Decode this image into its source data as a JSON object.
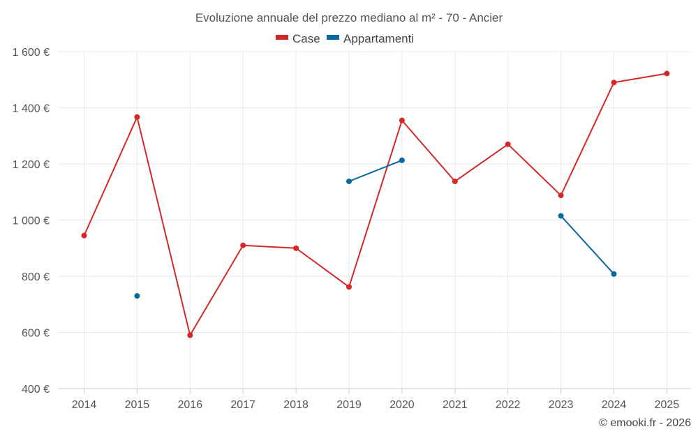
{
  "chart_data": {
    "type": "line",
    "title": "Evoluzione annuale del prezzo mediano al m² - 70 - Ancier",
    "xlabel": "",
    "ylabel": "",
    "categories": [
      "2014",
      "2015",
      "2016",
      "2017",
      "2018",
      "2019",
      "2020",
      "2021",
      "2022",
      "2023",
      "2024",
      "2025"
    ],
    "ylim": [
      400,
      1600
    ],
    "yticks": [
      400,
      600,
      800,
      1000,
      1200,
      1400,
      1600
    ],
    "ytick_labels": [
      "400 €",
      "600 €",
      "800 €",
      "1 000 €",
      "1 200 €",
      "1 400 €",
      "1 600 €"
    ],
    "grid": true,
    "legend_position": "top-center",
    "series": [
      {
        "name": "Case",
        "color": "#d62728",
        "values": [
          945,
          1367,
          590,
          910,
          900,
          762,
          1355,
          1138,
          1270,
          1088,
          1490,
          1522
        ]
      },
      {
        "name": "Appartamenti",
        "color": "#0868a0",
        "values": [
          null,
          730,
          null,
          null,
          null,
          1138,
          1213,
          null,
          null,
          1015,
          808,
          null
        ]
      }
    ]
  },
  "credit": "© emooki.fr - 2026"
}
